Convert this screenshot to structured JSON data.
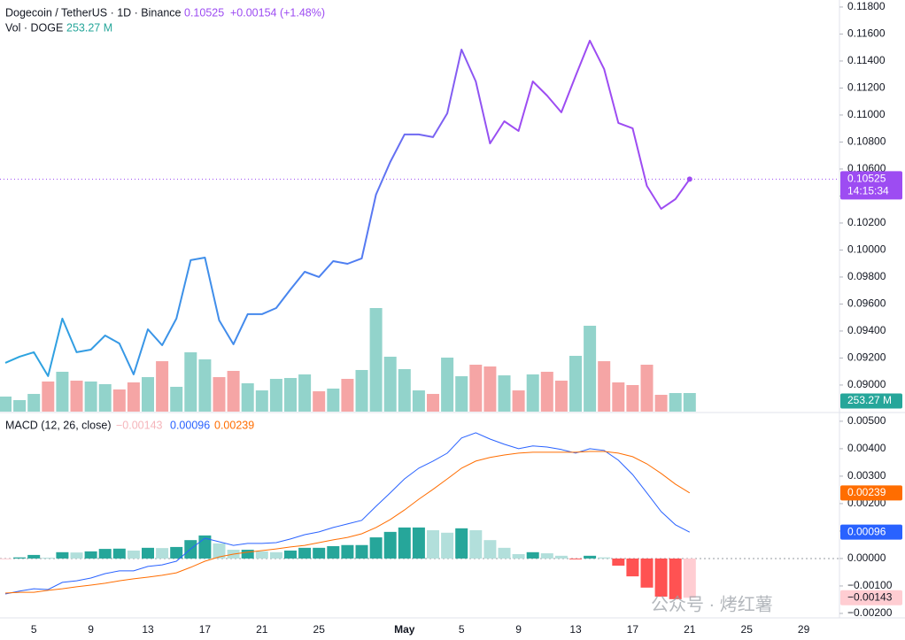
{
  "chart_data": {
    "type": "line",
    "title": "Dogecoin / TetherUS · 1D · Binance",
    "change": "+0.00154 (+1.48%)",
    "volume_title": "Vol · DOGE",
    "volume_label": "253.27 M",
    "watermark": "公众号 · 烤红薯",
    "categories": [
      null,
      null,
      "5",
      null,
      null,
      null,
      "9",
      null,
      null,
      null,
      "13",
      null,
      null,
      null,
      "17",
      null,
      null,
      null,
      "21",
      null,
      null,
      null,
      "25",
      null,
      null,
      null,
      null,
      null,
      "May",
      null,
      null,
      null,
      "5",
      null,
      null,
      null,
      "9",
      null,
      null,
      null,
      "13",
      null,
      null,
      null,
      "17",
      null,
      null,
      null,
      "21"
    ],
    "future_categories": [
      null,
      null,
      null,
      "25",
      null,
      null,
      null,
      "29",
      null,
      null
    ],
    "ylim": [
      0.08803,
      0.11852
    ],
    "yticks": [
      {
        "value": 0.118,
        "label": "0.11800"
      },
      {
        "value": 0.116,
        "label": "0.11600"
      },
      {
        "value": 0.114,
        "label": "0.11400"
      },
      {
        "value": 0.112,
        "label": "0.11200"
      },
      {
        "value": 0.11,
        "label": "0.11000"
      },
      {
        "value": 0.108,
        "label": "0.10800"
      },
      {
        "value": 0.106,
        "label": "0.10600"
      },
      {
        "value": 0.104,
        "label": "0.10400"
      },
      {
        "value": 0.102,
        "label": "0.10200"
      },
      {
        "value": 0.1,
        "label": "0.10000"
      },
      {
        "value": 0.098,
        "label": "0.09800"
      },
      {
        "value": 0.096,
        "label": "0.09600"
      },
      {
        "value": 0.094,
        "label": "0.09400"
      },
      {
        "value": 0.092,
        "label": "0.09200"
      },
      {
        "value": 0.09,
        "label": "0.09000"
      }
    ],
    "grid": false,
    "price": {
      "values": [
        0.09164,
        0.0921,
        0.09243,
        0.09066,
        0.09492,
        0.09243,
        0.09262,
        0.09367,
        0.09308,
        0.09079,
        0.09413,
        0.09295,
        0.09492,
        0.09925,
        0.09944,
        0.09479,
        0.09302,
        0.09525,
        0.09525,
        0.0957,
        0.09708,
        0.09839,
        0.098,
        0.09918,
        0.09898,
        0.09938,
        0.1041,
        0.10652,
        0.10856,
        0.10856,
        0.10836,
        0.11013,
        0.11485,
        0.11249,
        0.1079,
        0.10954,
        0.10882,
        0.11249,
        0.11144,
        0.1102,
        0.11289,
        0.11551,
        0.11341,
        0.10941,
        0.10902,
        0.10475,
        0.10305,
        0.10377,
        0.10525
      ],
      "gradient": [
        "#2aa6de",
        "#4f7ef2",
        "#9d4cf2"
      ],
      "color": "#9d4cf2",
      "last_time": "14:15:34"
    },
    "volume": {
      "values": [
        205,
        157,
        241,
        410,
        543,
        422,
        410,
        374,
        302,
        398,
        470,
        687,
        338,
        808,
        712,
        470,
        555,
        386,
        289,
        446,
        458,
        507,
        277,
        314,
        446,
        567,
        1411,
        748,
        579,
        289,
        241,
        736,
        482,
        639,
        615,
        494,
        289,
        507,
        543,
        422,
        760,
        1170,
        687,
        398,
        362,
        639,
        229,
        253,
        253.27
      ],
      "up_color": "#92d3cb",
      "down_color": "#f5a5a5",
      "badge_color": "#26a69a"
    },
    "macd": {
      "title": "MACD (12, 26, close)",
      "ylim": [
        -0.00213,
        0.00519
      ],
      "yticks": [
        {
          "value": 0.005,
          "label": "0.00500"
        },
        {
          "value": 0.004,
          "label": "0.00400"
        },
        {
          "value": 0.003,
          "label": "0.00300"
        },
        {
          "value": 0.002,
          "label": "0.00200"
        },
        {
          "value": 0.001,
          "label": "0.00100"
        },
        {
          "value": 0,
          "label": "0.00000"
        },
        {
          "value": -0.001,
          "label": "−0.00100"
        },
        {
          "value": -0.002,
          "label": "−0.00200"
        }
      ],
      "histogram_label": "−0.00143",
      "histogram": {
        "values": [
          -3e-05,
          4e-05,
          0.00013,
          3e-05,
          0.00023,
          0.00022,
          0.00026,
          0.00035,
          0.00036,
          0.00029,
          0.00039,
          0.00038,
          0.00042,
          0.00067,
          0.00084,
          0.00055,
          0.00032,
          0.00032,
          0.00026,
          0.00023,
          0.00029,
          0.00039,
          0.00039,
          0.00045,
          0.00049,
          0.00049,
          0.00077,
          0.00097,
          0.00113,
          0.00113,
          0.00103,
          0.00094,
          0.0011,
          0.00103,
          0.00067,
          0.00039,
          0.00016,
          0.00023,
          0.00019,
          0.0001,
          -3e-05,
          0.0001,
          4e-05,
          -0.00026,
          -0.00065,
          -0.00106,
          -0.00139,
          -0.00148,
          -0.00143
        ],
        "colors": {
          "up_rising": "#26a69a",
          "up_falling": "#b2dfdb",
          "down_falling": "#ff5252",
          "down_rising": "#ffcdd2"
        }
      },
      "macd_line": {
        "values": [
          -0.00129,
          -0.00119,
          -0.0011,
          -0.00113,
          -0.00087,
          -0.00081,
          -0.00071,
          -0.00055,
          -0.00045,
          -0.00045,
          -0.00029,
          -0.00023,
          -0.0001,
          0.00035,
          0.00074,
          0.00061,
          0.00048,
          0.00055,
          0.00055,
          0.00058,
          0.00071,
          0.00087,
          0.00097,
          0.00113,
          0.00126,
          0.00139,
          0.0019,
          0.00239,
          0.0029,
          0.00329,
          0.00355,
          0.00384,
          0.00439,
          0.00458,
          0.00435,
          0.00416,
          0.004,
          0.0041,
          0.00406,
          0.00397,
          0.00384,
          0.004,
          0.00394,
          0.00358,
          0.00306,
          0.00239,
          0.00171,
          0.00123,
          0.00096
        ],
        "color": "#2962ff"
      },
      "signal_line": {
        "values": [
          -0.00126,
          -0.00123,
          -0.00123,
          -0.00116,
          -0.0011,
          -0.00103,
          -0.00097,
          -0.0009,
          -0.00081,
          -0.00074,
          -0.00068,
          -0.00061,
          -0.00052,
          -0.00032,
          -0.0001,
          6e-05,
          0.00016,
          0.00023,
          0.00029,
          0.00035,
          0.00042,
          0.00048,
          0.00058,
          0.00068,
          0.00077,
          0.0009,
          0.00113,
          0.00142,
          0.00177,
          0.00216,
          0.00252,
          0.0029,
          0.00329,
          0.00355,
          0.00368,
          0.00377,
          0.00384,
          0.00387,
          0.00387,
          0.00387,
          0.00387,
          0.0039,
          0.0039,
          0.00384,
          0.00371,
          0.00345,
          0.0031,
          0.00271,
          0.00239
        ],
        "color": "#ff6d00"
      }
    }
  }
}
